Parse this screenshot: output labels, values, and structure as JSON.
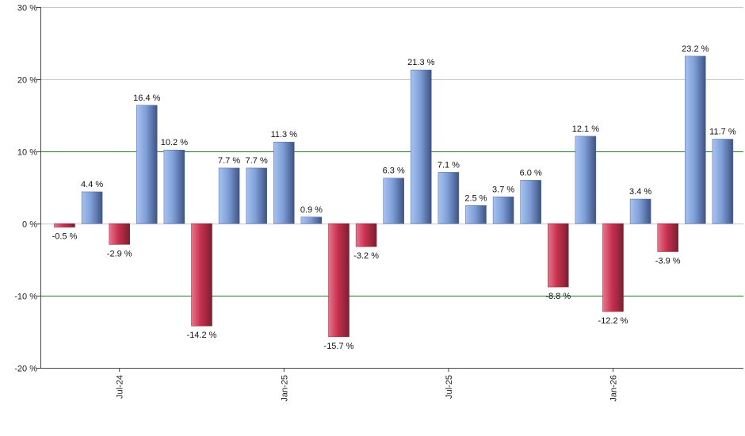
{
  "chart_data": {
    "type": "bar",
    "title": "",
    "xlabel": "",
    "ylabel": "",
    "ylim": [
      -20,
      30
    ],
    "y_ticks": [
      30,
      20,
      10,
      0,
      -10,
      -20
    ],
    "y_tick_labels": [
      "30 %",
      "20 %",
      "10 %",
      "0 %",
      "-10 %",
      "-20 %"
    ],
    "x_tick_labels": [
      {
        "label": "Jul-24",
        "index": 2
      },
      {
        "label": "Jan-25",
        "index": 8
      },
      {
        "label": "Jul-25",
        "index": 14
      },
      {
        "label": "Jan-26",
        "index": 20
      }
    ],
    "values": [
      -0.5,
      4.4,
      -2.9,
      16.4,
      10.2,
      -14.2,
      7.7,
      7.7,
      11.3,
      0.9,
      -15.7,
      -3.2,
      6.3,
      21.3,
      7.1,
      2.5,
      3.7,
      6.0,
      -8.8,
      12.1,
      -12.2,
      3.4,
      -3.9,
      23.2,
      11.7
    ],
    "labels": [
      "-0.5 %",
      "4.4 %",
      "-2.9 %",
      "16.4 %",
      "10.2 %",
      "-14.2 %",
      "7.7 %",
      "7.7 %",
      "11.3 %",
      "0.9 %",
      "-15.7 %",
      "-3.2 %",
      "6.3 %",
      "21.3 %",
      "7.1 %",
      "2.5 %",
      "3.7 %",
      "6.0 %",
      "-8.8 %",
      "12.1 %",
      "-12.2 %",
      "3.4 %",
      "-3.9 %",
      "23.2 %",
      "11.7 %"
    ],
    "colors": {
      "positive": "#7f9fd8",
      "negative": "#c8304f",
      "grid": "#c8c8c8",
      "grid_highlight": "#1e7a1e",
      "axis": "#444444"
    },
    "grid": true,
    "legend": "none"
  }
}
